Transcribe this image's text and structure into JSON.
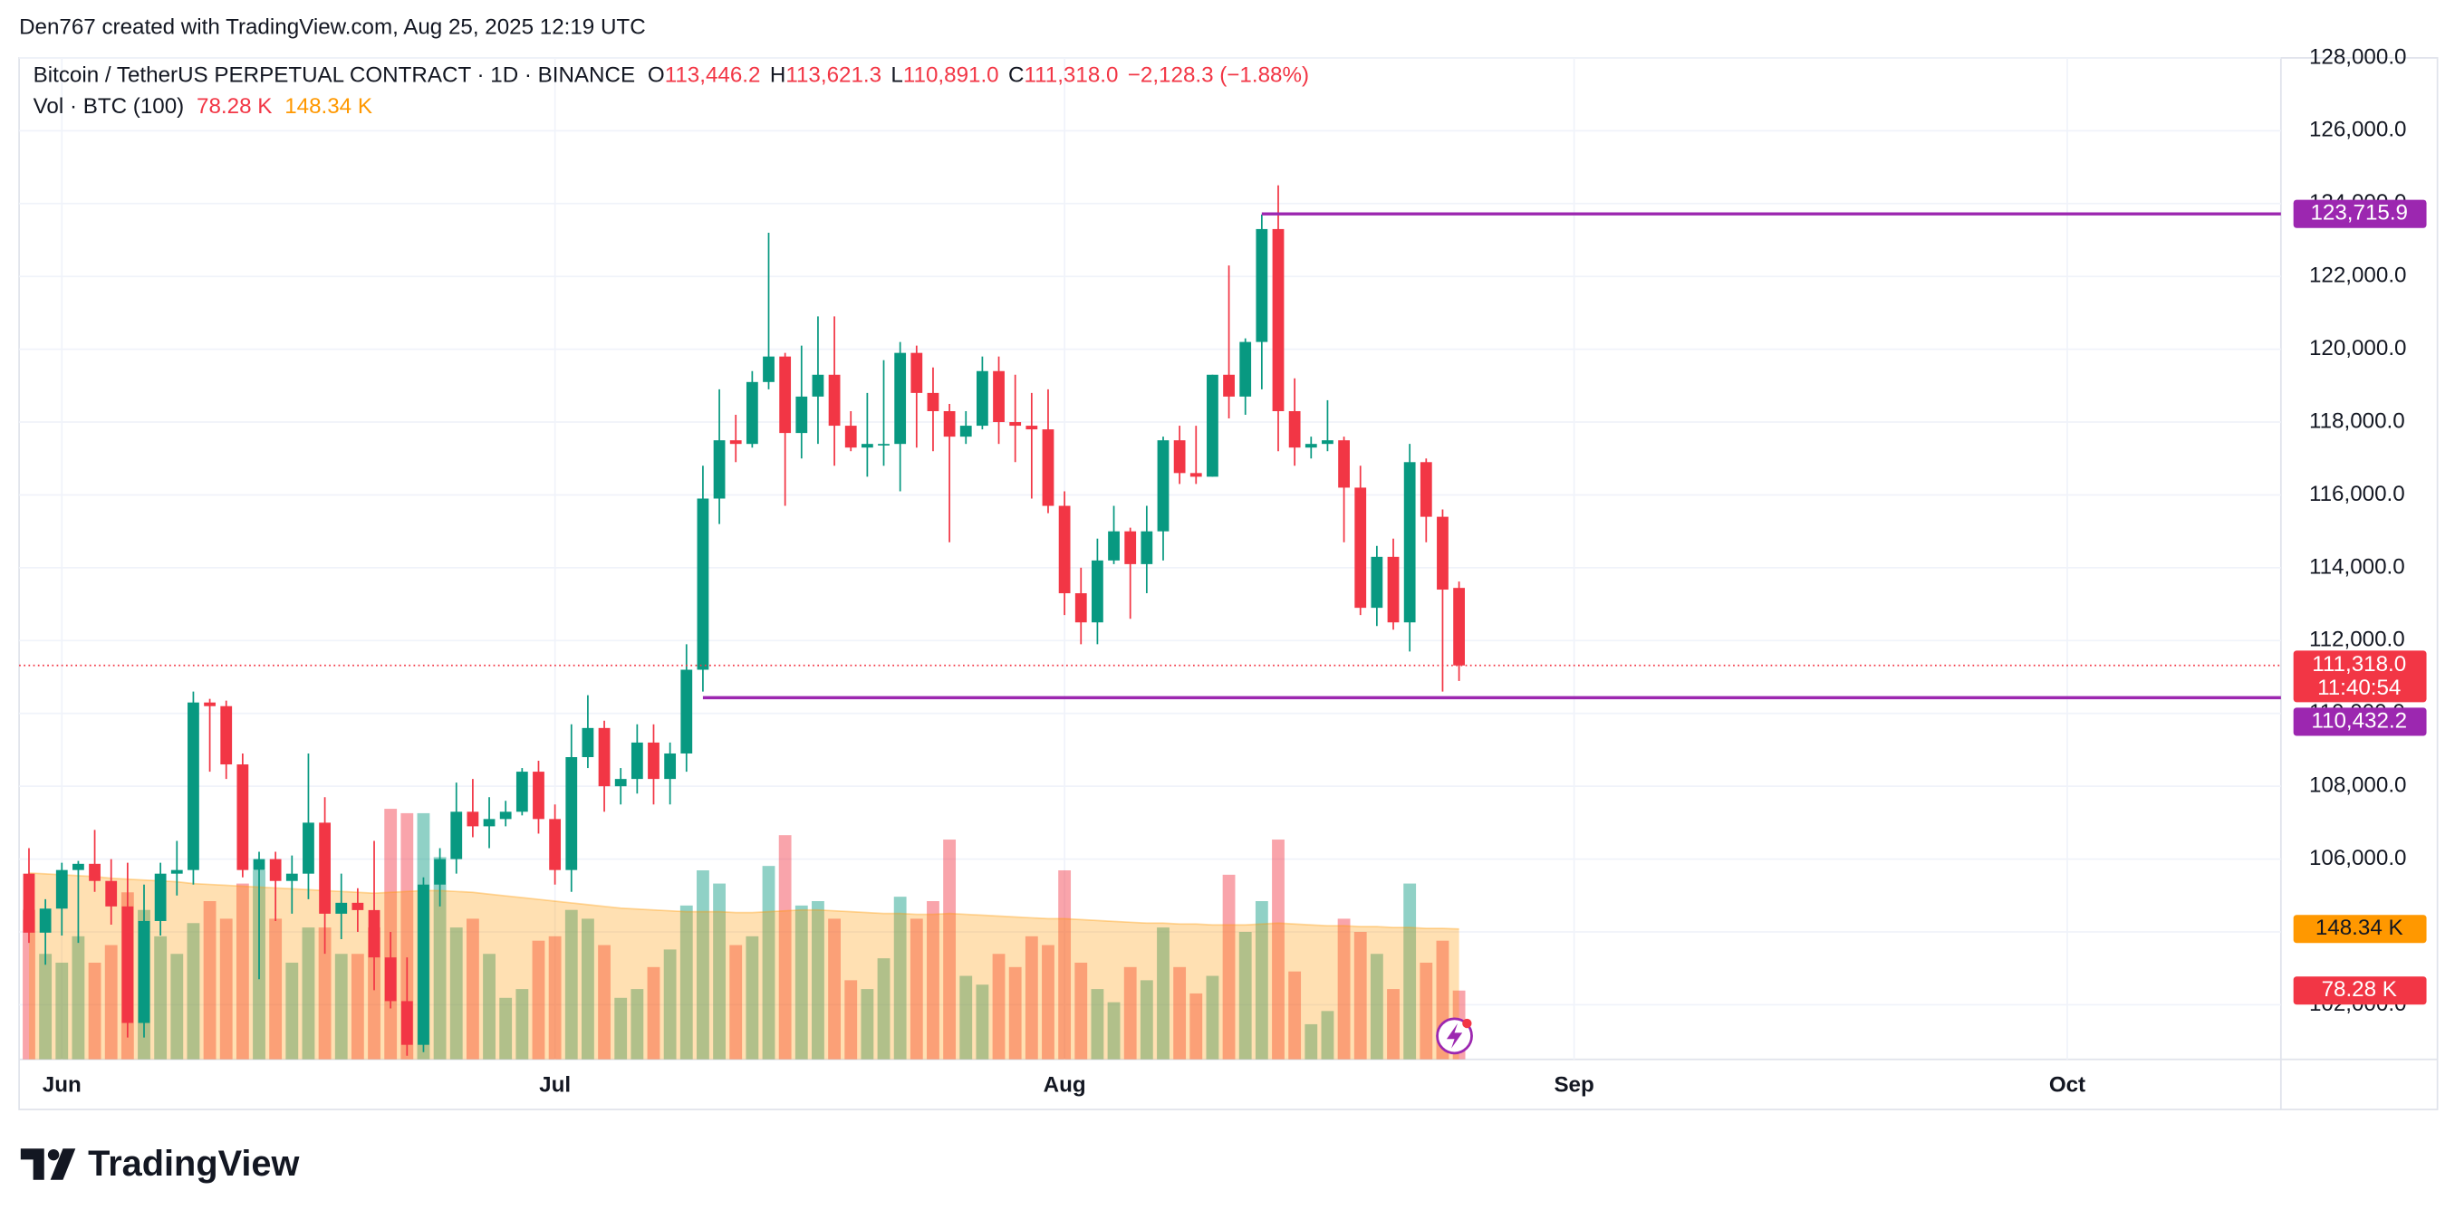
{
  "chart_data": {
    "type": "candlestick",
    "attribution": "Den767 created with TradingView.com, Aug 25, 2025 12:19 UTC",
    "title": "Bitcoin / TetherUS PERPETUAL CONTRACT · 1D · BINANCE",
    "ohlc_keys": [
      "O",
      "H",
      "L",
      "C"
    ],
    "ohlc_labels": [
      "113,446.2",
      "113,621.3",
      "110,891.0",
      "111,318.0"
    ],
    "change_label": "−2,128.3 (−1.88%)",
    "countdown": "11:40:54",
    "brand": "TradingView",
    "up_color": "#089981",
    "down_color": "#f23645",
    "grid": true,
    "xlim": [
      -0.6,
      137
    ],
    "xticks": [
      {
        "value": 2,
        "label": "Jun"
      },
      {
        "value": 32,
        "label": "Jul"
      },
      {
        "value": 63,
        "label": "Aug"
      },
      {
        "value": 94,
        "label": "Sep"
      },
      {
        "value": 124,
        "label": "Oct"
      }
    ],
    "ylim": [
      100500,
      128000
    ],
    "yticks": [
      {
        "value": 102000,
        "label": "102,000.0"
      },
      {
        "value": 104000,
        "label": "104,000.0"
      },
      {
        "value": 106000,
        "label": "106,000.0"
      },
      {
        "value": 108000,
        "label": "108,000.0"
      },
      {
        "value": 110000,
        "label": "110,000.0"
      },
      {
        "value": 112000,
        "label": "112,000.0"
      },
      {
        "value": 114000,
        "label": "114,000.0"
      },
      {
        "value": 116000,
        "label": "116,000.0"
      },
      {
        "value": 118000,
        "label": "118,000.0"
      },
      {
        "value": 120000,
        "label": "120,000.0"
      },
      {
        "value": 122000,
        "label": "122,000.0"
      },
      {
        "value": 124000,
        "label": "124,000.0"
      },
      {
        "value": 126000,
        "label": "126,000.0"
      },
      {
        "value": 128000,
        "label": "128,000.0"
      }
    ],
    "x": [
      0,
      1,
      2,
      3,
      4,
      5,
      6,
      7,
      8,
      9,
      10,
      11,
      12,
      13,
      14,
      15,
      16,
      17,
      18,
      19,
      20,
      21,
      22,
      23,
      24,
      25,
      26,
      27,
      28,
      29,
      30,
      31,
      32,
      33,
      34,
      35,
      36,
      37,
      38,
      39,
      40,
      41,
      42,
      43,
      44,
      45,
      46,
      47,
      48,
      49,
      50,
      51,
      52,
      53,
      54,
      55,
      56,
      57,
      58,
      59,
      60,
      61,
      62,
      63,
      64,
      65,
      66,
      67,
      68,
      69,
      70,
      71,
      72,
      73,
      74,
      75,
      76,
      77,
      78,
      79,
      80,
      81,
      82,
      83,
      84,
      85,
      86,
      87
    ],
    "open": [
      105600,
      103980,
      104640,
      105700,
      105870,
      105400,
      104700,
      101500,
      104300,
      105600,
      105700,
      110300,
      110200,
      108600,
      105700,
      106000,
      105400,
      105600,
      107000,
      104500,
      104800,
      104600,
      103300,
      102100,
      100900,
      105300,
      106000,
      107300,
      106900,
      107100,
      107300,
      108400,
      107100,
      105700,
      108800,
      109600,
      108000,
      108200,
      109200,
      108200,
      108900,
      111200,
      115900,
      117500,
      117400,
      119100,
      119800,
      117700,
      118700,
      119300,
      117900,
      117300,
      117400,
      117400,
      119900,
      118800,
      118300,
      117600,
      117900,
      119400,
      118000,
      117900,
      117800,
      115700,
      113300,
      112500,
      114200,
      115000,
      114100,
      115000,
      117500,
      116600,
      116500,
      119300,
      118700,
      120200,
      123300,
      118300,
      117300,
      117400,
      117500,
      116200,
      112900,
      114300,
      112500,
      116900,
      115400,
      113446.2
    ],
    "high": [
      106300,
      104900,
      105900,
      105950,
      106800,
      106000,
      105900,
      105300,
      105900,
      106500,
      110600,
      110400,
      110350,
      108900,
      106200,
      106200,
      106100,
      108900,
      107700,
      105600,
      105200,
      106500,
      104000,
      103300,
      105500,
      106300,
      108100,
      108200,
      107700,
      107600,
      108500,
      108700,
      107500,
      109700,
      110500,
      109800,
      108500,
      109700,
      109700,
      109200,
      111900,
      116800,
      118900,
      118200,
      119400,
      123200,
      119900,
      120100,
      120900,
      120900,
      118300,
      118800,
      119700,
      120200,
      120100,
      119500,
      118500,
      118300,
      119800,
      119800,
      119300,
      118800,
      118900,
      116100,
      114000,
      114800,
      115700,
      115100,
      115700,
      117600,
      117900,
      117900,
      119300,
      122300,
      120300,
      123700,
      124500,
      119200,
      117600,
      118600,
      117600,
      116800,
      114600,
      114800,
      117400,
      117000,
      115600,
      113621.3
    ],
    "low": [
      103700,
      103100,
      103900,
      103700,
      105100,
      104200,
      101100,
      101100,
      103900,
      105000,
      105300,
      108400,
      108200,
      105500,
      102700,
      104300,
      104500,
      104900,
      103400,
      103800,
      104000,
      102400,
      101900,
      100600,
      100700,
      104700,
      105600,
      106600,
      106300,
      106900,
      107200,
      106700,
      105300,
      105100,
      108500,
      107300,
      107500,
      107800,
      107500,
      107500,
      108400,
      110600,
      115200,
      116900,
      117300,
      118900,
      115700,
      117000,
      117400,
      116800,
      117200,
      116500,
      116800,
      116100,
      117300,
      117200,
      114700,
      117400,
      117800,
      117400,
      116900,
      115900,
      115500,
      112700,
      111900,
      111900,
      114100,
      112600,
      113300,
      114200,
      116300,
      116300,
      116500,
      118100,
      118200,
      118900,
      117200,
      116800,
      117000,
      117200,
      114700,
      112700,
      112400,
      112300,
      111700,
      114700,
      110600,
      110891
    ],
    "close": [
      103980,
      104640,
      105700,
      105870,
      105400,
      104700,
      101500,
      104300,
      105600,
      105700,
      110300,
      110200,
      108600,
      105700,
      106000,
      105400,
      105600,
      107000,
      104500,
      104800,
      104600,
      103300,
      102100,
      100900,
      105300,
      106000,
      107300,
      106900,
      107100,
      107300,
      108400,
      107100,
      105700,
      108800,
      109600,
      108000,
      108200,
      109200,
      108200,
      108900,
      111200,
      115900,
      117500,
      117400,
      119100,
      119800,
      117700,
      118700,
      119300,
      117900,
      117300,
      117400,
      117400,
      119900,
      118800,
      118300,
      117600,
      117900,
      119400,
      118000,
      117900,
      117800,
      115700,
      113300,
      112500,
      114200,
      115000,
      114100,
      115000,
      117500,
      116600,
      116500,
      119300,
      118700,
      120200,
      123300,
      118300,
      117300,
      117400,
      117500,
      116200,
      112900,
      114300,
      112500,
      116900,
      115400,
      113400,
      111318
    ],
    "hlines": {
      "values": [
        123715.9,
        110432.2
      ],
      "value_labels": [
        "123,715.9",
        "110,432.2"
      ],
      "start_x": [
        75,
        41
      ],
      "color": "#9c27b0"
    },
    "volume": {
      "title": "Vol · BTC (100)",
      "ylim": [
        0,
        1139
      ],
      "values": [
        170,
        120,
        110,
        140,
        110,
        130,
        190,
        170,
        140,
        120,
        155,
        180,
        160,
        200,
        215,
        160,
        110,
        150,
        150,
        120,
        120,
        150,
        285,
        280,
        280,
        230,
        150,
        160,
        120,
        70,
        80,
        135,
        140,
        170,
        160,
        130,
        70,
        80,
        105,
        125,
        175,
        215,
        200,
        130,
        140,
        220,
        255,
        175,
        180,
        160,
        90,
        80,
        115,
        185,
        160,
        180,
        250,
        95,
        85,
        120,
        105,
        140,
        130,
        215,
        110,
        80,
        65,
        105,
        90,
        150,
        105,
        75,
        95,
        210,
        145,
        180,
        250,
        100,
        40,
        55,
        160,
        145,
        120,
        80,
        200,
        110,
        135,
        78.28
      ],
      "ma_values": [
        212,
        211,
        210,
        209,
        208,
        206,
        205,
        204,
        203,
        202,
        200,
        199,
        198,
        197,
        196,
        195,
        194,
        193,
        192,
        191,
        190,
        189,
        190,
        191,
        192,
        192,
        191,
        190,
        188,
        186,
        184,
        182,
        180,
        178,
        176,
        174,
        172,
        171,
        170,
        169,
        168,
        168,
        168,
        167,
        167,
        168,
        169,
        170,
        170,
        169,
        168,
        167,
        166,
        166,
        165,
        165,
        166,
        165,
        164,
        163,
        162,
        161,
        160,
        160,
        159,
        158,
        157,
        156,
        155,
        155,
        154,
        154,
        153,
        153,
        153,
        154,
        155,
        154,
        153,
        152,
        152,
        151,
        151,
        150,
        150,
        149,
        149,
        148.34
      ],
      "last_label": "78.28 K",
      "ma_last_label": "148.34 K",
      "ma_color": "#ff9800"
    }
  }
}
